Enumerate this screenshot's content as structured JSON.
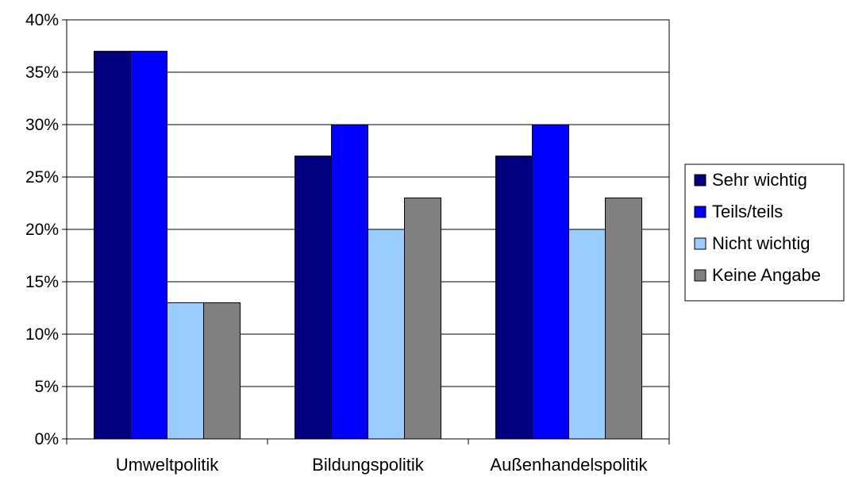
{
  "chart_data": {
    "type": "bar",
    "categories": [
      "Umweltpolitik",
      "Bildungspolitik",
      "Außenhandelspolitik"
    ],
    "series": [
      {
        "name": "Sehr wichtig",
        "values": [
          37,
          27,
          27
        ],
        "color": "#000080"
      },
      {
        "name": "Teils/teils",
        "values": [
          37,
          30,
          30
        ],
        "color": "#0000ff"
      },
      {
        "name": "Nicht wichtig",
        "values": [
          13,
          20,
          20
        ],
        "color": "#99ccff"
      },
      {
        "name": "Keine Angabe",
        "values": [
          13,
          23,
          23
        ],
        "color": "#808080"
      }
    ],
    "ylim": [
      0,
      40
    ],
    "yticks": [
      0,
      5,
      10,
      15,
      20,
      25,
      30,
      35,
      40
    ],
    "ytick_labels": [
      "0%",
      "5%",
      "10%",
      "15%",
      "20%",
      "25%",
      "30%",
      "35%",
      "40%"
    ],
    "grid": true,
    "legend_position": "right",
    "title": "",
    "xlabel": "",
    "ylabel": ""
  }
}
